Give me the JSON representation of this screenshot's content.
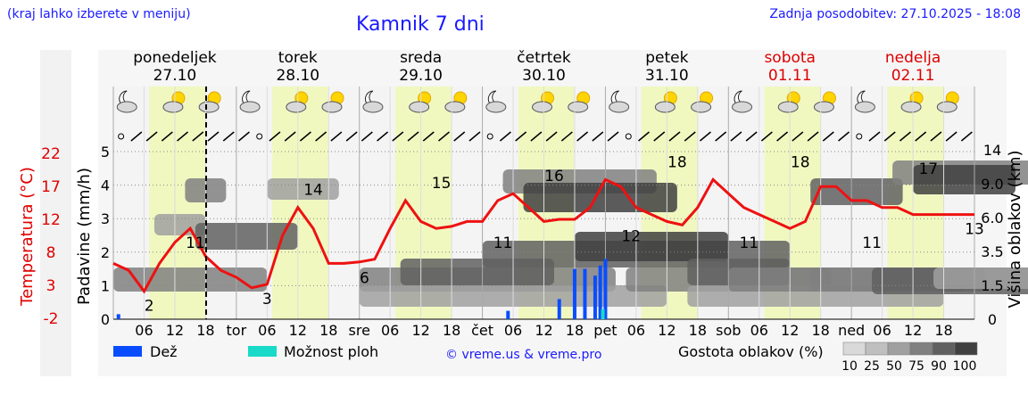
{
  "header": {
    "menu_note": "(kraj lahko izberete v meniju)",
    "title": "Kamnik 7 dni",
    "updated": "Zadnja posodobitev: 27.10.2025 - 18:08"
  },
  "days": [
    {
      "name": "ponedeljek",
      "date": "27.10",
      "weekend": false
    },
    {
      "name": "torek",
      "date": "28.10",
      "weekend": false
    },
    {
      "name": "sreda",
      "date": "29.10",
      "weekend": false
    },
    {
      "name": "četrtek",
      "date": "30.10",
      "weekend": false
    },
    {
      "name": "petek",
      "date": "31.10",
      "weekend": false
    },
    {
      "name": "sobota",
      "date": "01.11",
      "weekend": true
    },
    {
      "name": "nedelja",
      "date": "02.11",
      "weekend": true
    }
  ],
  "axes": {
    "left_temp_label": "Temperatura (°C)",
    "left_temp_ticks": [
      "22",
      "17",
      "12",
      "8",
      "3",
      "-2"
    ],
    "left_precip_label": "Padavine (mm/h)",
    "left_precip_ticks": [
      "0",
      "1",
      "2",
      "3",
      "4",
      "5"
    ],
    "right_label": "Višina oblakov (km)",
    "right_ticks": [
      "0",
      "1.5",
      "3.5",
      "6.0",
      "9.0",
      "14"
    ],
    "hour_ticks": [
      "06",
      "12",
      "18",
      "tor",
      "06",
      "12",
      "18",
      "sre",
      "06",
      "12",
      "18",
      "čet",
      "06",
      "12",
      "18",
      "pet",
      "06",
      "12",
      "18",
      "sob",
      "06",
      "12",
      "18",
      "ned",
      "06",
      "12",
      "18"
    ]
  },
  "legend": {
    "rain": "Dež",
    "showers": "Možnost ploh",
    "credit": "© vreme.us & vreme.pro",
    "density_title": "Gostota oblakov (%)",
    "density_values": [
      "10",
      "25",
      "50",
      "75",
      "90",
      "100"
    ]
  },
  "colors": {
    "temperature": "#ee1111",
    "rain": "#0a4dff",
    "showers": "#19d9c8",
    "weekend": "#dd0000",
    "daylight": "#f0f8c0",
    "night": "#f4f4f4",
    "density": [
      "#d9d9d9",
      "#bfbfbf",
      "#a0a0a0",
      "#808080",
      "#606060",
      "#404040"
    ]
  },
  "chart_data": {
    "type": "line",
    "title": "Kamnik 7 dni",
    "xlabel": "",
    "ylabel": "Temperatura (°C)",
    "ylim": [
      -2,
      22
    ],
    "x_unit": "hours from 27.10 00:00",
    "series": [
      {
        "values_x": [
          0,
          3,
          6,
          9,
          12,
          15,
          18,
          21,
          24,
          27,
          30,
          33,
          36,
          39,
          42,
          45,
          48,
          51,
          54,
          57,
          60,
          63,
          66,
          69,
          72,
          75,
          78,
          81,
          84,
          87,
          90,
          93,
          96,
          99,
          102,
          105,
          108,
          111,
          114,
          117,
          120,
          123,
          126,
          129,
          132,
          135,
          138,
          141,
          144,
          147,
          150,
          153,
          156,
          159,
          162,
          165,
          168
        ],
        "values_y": [
          6,
          5,
          2,
          6,
          9,
          11,
          7,
          5,
          4,
          2.5,
          3,
          10,
          14,
          11,
          6,
          6,
          6.2,
          6.6,
          11,
          15,
          12,
          11,
          11.3,
          12,
          12,
          15,
          16,
          14,
          12,
          12.3,
          12.3,
          14,
          18,
          17,
          14,
          13,
          12,
          11.5,
          14,
          18,
          16,
          14,
          13,
          12,
          11,
          12,
          17,
          17,
          15,
          15,
          14,
          14,
          13,
          13,
          13,
          13,
          13
        ]
      }
    ],
    "temperature_labels": [
      {
        "x": 7,
        "label": "2"
      },
      {
        "x": 16,
        "label": "11"
      },
      {
        "x": 30,
        "label": "3"
      },
      {
        "x": 39,
        "label": "14"
      },
      {
        "x": 49,
        "label": "6"
      },
      {
        "x": 64,
        "label": "15"
      },
      {
        "x": 76,
        "label": "11"
      },
      {
        "x": 86,
        "label": "16"
      },
      {
        "x": 101,
        "label": "12"
      },
      {
        "x": 110,
        "label": "18"
      },
      {
        "x": 124,
        "label": "11"
      },
      {
        "x": 134,
        "label": "18"
      },
      {
        "x": 148,
        "label": "11"
      },
      {
        "x": 159,
        "label": "17"
      },
      {
        "x": 168,
        "label": "13"
      }
    ],
    "precipitation": [
      {
        "x": 1,
        "mm": 0.15,
        "kind": "rain"
      },
      {
        "x": 77,
        "mm": 0.25,
        "kind": "rain"
      },
      {
        "x": 87,
        "mm": 0.6,
        "kind": "rain"
      },
      {
        "x": 90,
        "mm": 1.5,
        "kind": "rain"
      },
      {
        "x": 92,
        "mm": 1.5,
        "kind": "rain"
      },
      {
        "x": 94,
        "mm": 1.3,
        "kind": "rain"
      },
      {
        "x": 95,
        "mm": 1.6,
        "kind": "rain"
      },
      {
        "x": 96,
        "mm": 1.8,
        "kind": "rain"
      },
      {
        "x": 95.5,
        "mm": 0.3,
        "kind": "showers"
      }
    ]
  }
}
